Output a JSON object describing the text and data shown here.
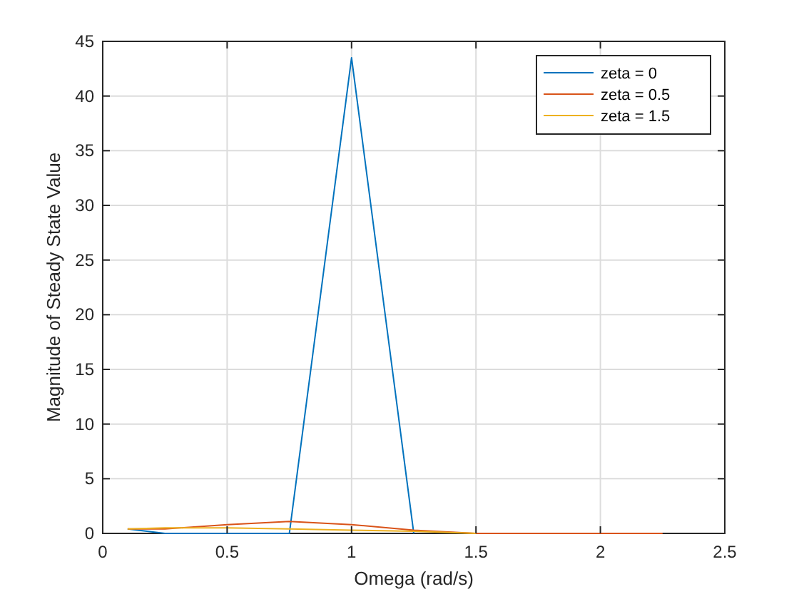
{
  "chart_data": {
    "type": "line",
    "xlabel": "Omega (rad/s)",
    "ylabel": "Magnitude of Steady State Value",
    "x": [
      0.1,
      0.25,
      0.5,
      0.75,
      1,
      1.25,
      1.5,
      1.75,
      2,
      2.25
    ],
    "series": [
      {
        "name": "zeta = 0",
        "color": "#0072bd",
        "x": [
          0.1,
          0.25,
          0.75,
          1,
          1.25
        ],
        "values": [
          0.4,
          0,
          0,
          43.5,
          0
        ]
      },
      {
        "name": "zeta = 0.5",
        "color": "#d95319",
        "values": [
          0.4,
          0.4,
          0.8,
          1.1,
          0.8,
          0.3,
          0,
          0,
          0,
          0
        ]
      },
      {
        "name": "zeta = 1.5",
        "color": "#edb120",
        "x": [
          0.1,
          0.25,
          0.5,
          0.75,
          1,
          1.25,
          1.5
        ],
        "values": [
          0.4,
          0.5,
          0.5,
          0.4,
          0.3,
          0.2,
          0
        ]
      }
    ],
    "xlim": [
      0,
      2.5
    ],
    "xticks": [
      0,
      0.5,
      1,
      1.5,
      2,
      2.5
    ],
    "ylim": [
      0,
      45
    ],
    "yticks": [
      0,
      5,
      10,
      15,
      20,
      25,
      30,
      35,
      40,
      45
    ],
    "grid": true,
    "legend": "top right"
  }
}
